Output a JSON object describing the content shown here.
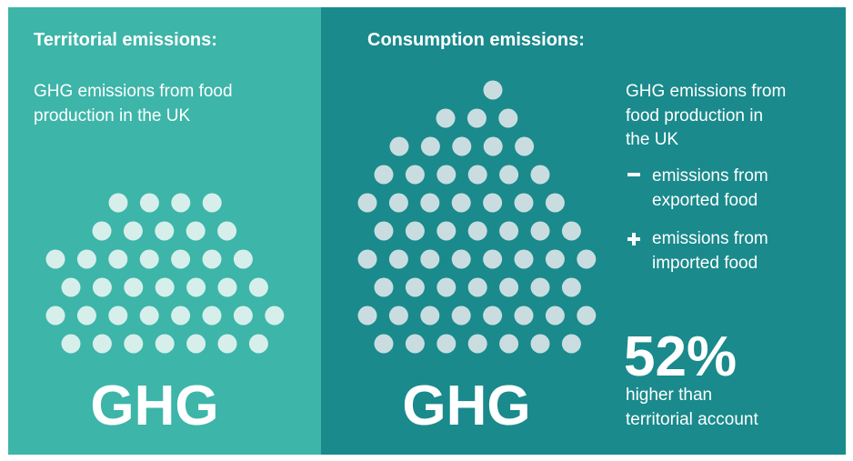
{
  "left": {
    "heading": "Territorial emissions:",
    "description": [
      "GHG emissions from food",
      "production in the UK"
    ],
    "label": "GHG"
  },
  "right": {
    "heading": "Consumption emissions:",
    "description": [
      "GHG emissions from",
      "food production in",
      "the UK"
    ],
    "items": [
      [
        "emissions from",
        "exported food"
      ],
      [
        "emissions from",
        "imported food"
      ]
    ],
    "stat": "52%",
    "stat_caption": [
      "higher than",
      "territorial account"
    ],
    "label": "GHG"
  }
}
